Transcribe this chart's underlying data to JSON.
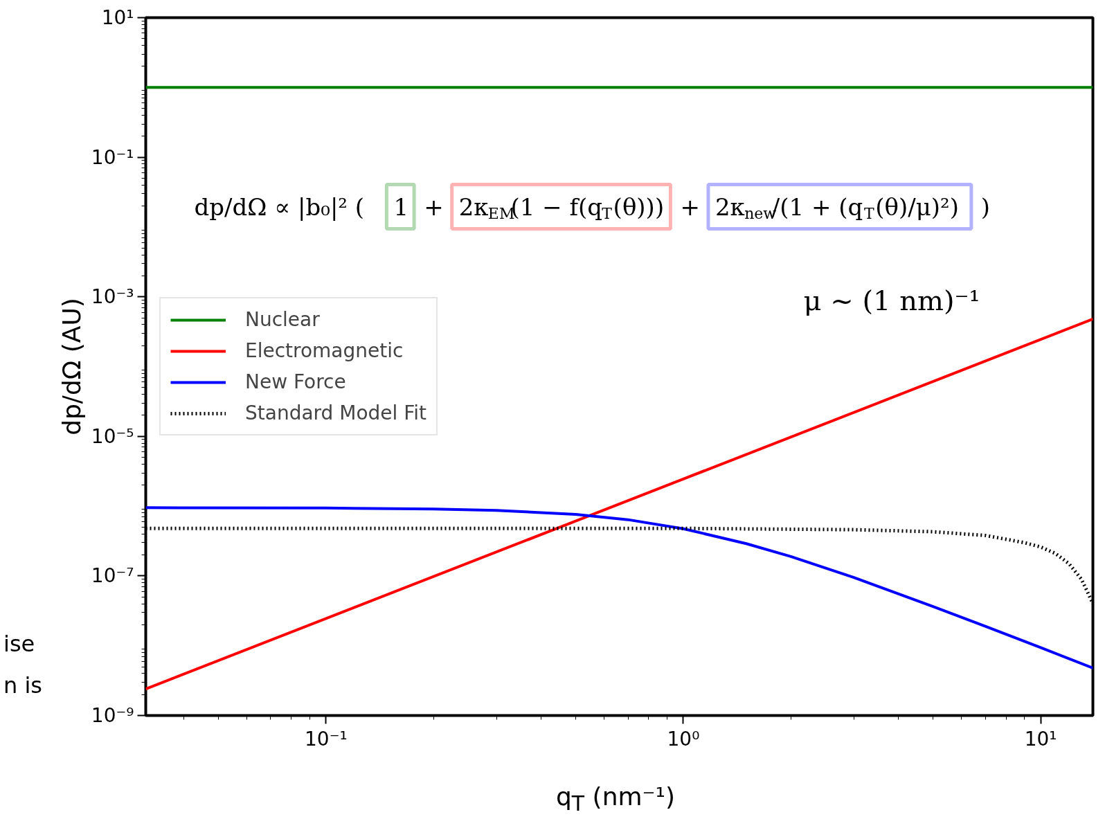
{
  "chart_data": {
    "type": "line",
    "xlabel": "q$_{T}$ (nm⁻¹)",
    "ylabel": "dp/dΩ (AU)",
    "log": "xy",
    "xlim": [
      0.0313,
      14
    ],
    "ylim": [
      1e-09,
      10
    ],
    "xticks": [
      {
        "value": 0.1,
        "label": "10⁻¹"
      },
      {
        "value": 1,
        "label": "10⁰"
      },
      {
        "value": 10,
        "label": "10¹"
      }
    ],
    "yticks": [
      {
        "value": 1e-09,
        "label": "10⁻⁹"
      },
      {
        "value": 1e-07,
        "label": "10⁻⁷"
      },
      {
        "value": 1e-05,
        "label": "10⁻⁵"
      },
      {
        "value": 0.001,
        "label": "10⁻³"
      },
      {
        "value": 0.1,
        "label": "10⁻¹"
      },
      {
        "value": 10,
        "label": "10¹"
      }
    ],
    "grid": false,
    "legend": "left",
    "series": [
      {
        "name": "Nuclear",
        "color": "#008000",
        "x": [
          0.0313,
          14
        ],
        "values": [
          1,
          1
        ]
      },
      {
        "name": "Electromagnetic",
        "color": "#ff0000",
        "x": [
          0.0313,
          1,
          14
        ],
        "values": [
          2.4e-09,
          2.45e-06,
          0.00048
        ]
      },
      {
        "name": "New Force",
        "color": "#0000ff",
        "x": [
          0.0313,
          0.1,
          0.2,
          0.3,
          0.5,
          0.7,
          1,
          1.5,
          2,
          3,
          5,
          7,
          10,
          14
        ],
        "values": [
          9.5e-07,
          9.4e-07,
          9.1e-07,
          8.7e-07,
          7.6e-07,
          6.4e-07,
          4.75e-07,
          2.9e-07,
          1.9e-07,
          9.5e-08,
          3.65e-08,
          1.9e-08,
          9.4e-09,
          4.8e-09
        ]
      },
      {
        "name": "Standard Model Fit",
        "color": "#000000",
        "line_style": "dotted",
        "x": [
          0.0313,
          1,
          3,
          5,
          7,
          9,
          10,
          11,
          12,
          13,
          13.5,
          14
        ],
        "values": [
          4.8e-07,
          4.8e-07,
          4.6e-07,
          4.3e-07,
          3.8e-07,
          3e-07,
          2.6e-07,
          2.1e-07,
          1.5e-07,
          9e-08,
          6e-08,
          4e-08
        ]
      }
    ],
    "annotations": [
      "dp/dΩ ∝ |b₀|² (",
      "1",
      "+",
      "2κ$_{EM}$(1 − f(q$_{T}$(θ)))",
      "+",
      "2κ$_{new}$/(1 + (q$_{T}$(θ)/μ)²)",
      ")",
      "μ ~ (1 nm)⁻¹",
      "ise",
      "n is"
    ]
  }
}
